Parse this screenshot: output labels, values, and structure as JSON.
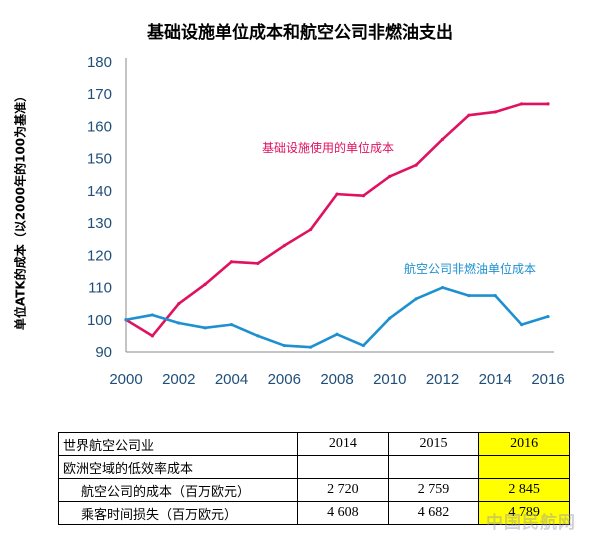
{
  "chart_data": {
    "type": "line",
    "title": "基础设施单位成本和航空公司非燃油支出",
    "ylabel": "单位ATK的成本（以2000年的100为基准）",
    "xlabel": "",
    "ylim": [
      90,
      180
    ],
    "yticks": [
      90,
      100,
      110,
      120,
      130,
      140,
      150,
      160,
      170,
      180
    ],
    "xticks": [
      2000,
      2002,
      2004,
      2006,
      2008,
      2010,
      2012,
      2014,
      2016
    ],
    "grid": false,
    "x": [
      2000,
      2001,
      2002,
      2003,
      2004,
      2005,
      2006,
      2007,
      2008,
      2009,
      2010,
      2011,
      2012,
      2013,
      2014,
      2015,
      2016
    ],
    "series": [
      {
        "name": "基础设施使用的单位成本",
        "color": "#e0115f",
        "values": [
          100,
          95,
          105,
          111,
          118,
          117.5,
          123,
          128,
          139,
          138.5,
          144.5,
          148,
          156,
          163.5,
          164.5,
          167,
          167
        ]
      },
      {
        "name": "航空公司非燃油单位成本",
        "color": "#1e90d0",
        "values": [
          100,
          101.5,
          99,
          97.5,
          98.5,
          95,
          92,
          91.5,
          95.5,
          92,
          100.5,
          106.5,
          110,
          107.5,
          107.5,
          98.5,
          101
        ]
      }
    ]
  },
  "table": {
    "header": [
      "世界航空公司业",
      "2014",
      "2015",
      "2016"
    ],
    "rows": [
      {
        "label": "欧洲空域的低效率成本",
        "values": [
          "",
          "",
          ""
        ]
      },
      {
        "label": "航空公司的成本（百万欧元）",
        "values": [
          "2 720",
          "2 759",
          "2 845"
        ]
      },
      {
        "label": "乘客时间损失（百万欧元）",
        "values": [
          "4 608",
          "4 682",
          "4 789"
        ]
      }
    ],
    "highlight_color": "#ffff00"
  },
  "watermark": "中国民航网"
}
